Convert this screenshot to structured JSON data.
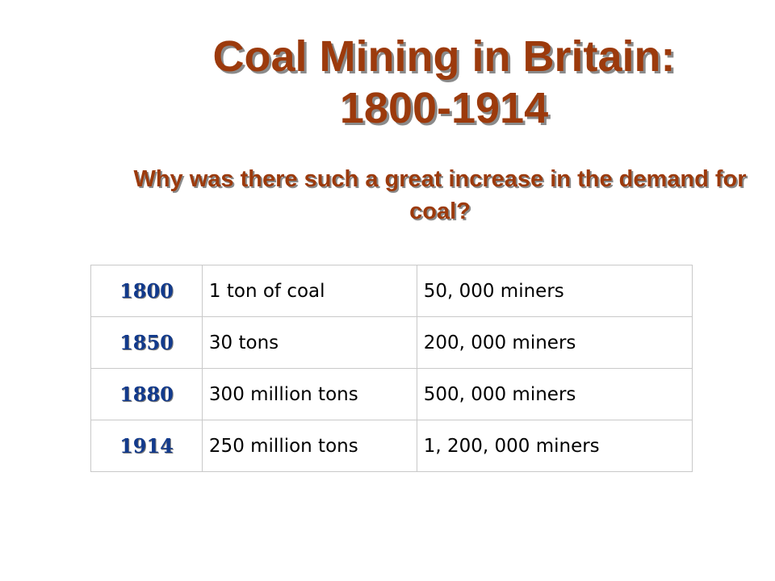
{
  "slide": {
    "title_line1": "Coal Mining in Britain:",
    "title_line2": "1800-1914",
    "subtitle": "Why was there such a great increase in the demand for coal?",
    "colors": {
      "title": "#9c3a0c",
      "year": "#123a8c",
      "shadow": "#8a8a8a"
    }
  },
  "table": {
    "rows": [
      {
        "year": "1800",
        "amount": "1 ton of coal",
        "miners": "50, 000 miners"
      },
      {
        "year": "1850",
        "amount": "30 tons",
        "miners": "200, 000 miners"
      },
      {
        "year": "1880",
        "amount": "300 million tons",
        "miners": "500, 000 miners"
      },
      {
        "year": "1914",
        "amount": "250 million tons",
        "miners": "1, 200, 000 miners"
      }
    ]
  }
}
